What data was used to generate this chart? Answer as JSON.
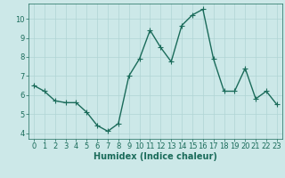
{
  "x": [
    0,
    1,
    2,
    3,
    4,
    5,
    6,
    7,
    8,
    9,
    10,
    11,
    12,
    13,
    14,
    15,
    16,
    17,
    18,
    19,
    20,
    21,
    22,
    23
  ],
  "y": [
    6.5,
    6.2,
    5.7,
    5.6,
    5.6,
    5.1,
    4.4,
    4.1,
    4.5,
    7.0,
    7.9,
    9.4,
    8.5,
    7.75,
    9.65,
    10.2,
    10.5,
    7.9,
    6.2,
    6.2,
    7.4,
    5.8,
    6.2,
    5.5
  ],
  "line_color": "#1a6b5a",
  "marker": "+",
  "marker_size": 4,
  "bg_color": "#cce8e8",
  "grid_color": "#b0d4d4",
  "xlabel": "Humidex (Indice chaleur)",
  "xlim": [
    -0.5,
    23.5
  ],
  "ylim": [
    3.7,
    10.8
  ],
  "yticks": [
    4,
    5,
    6,
    7,
    8,
    9,
    10
  ],
  "xticks": [
    0,
    1,
    2,
    3,
    4,
    5,
    6,
    7,
    8,
    9,
    10,
    11,
    12,
    13,
    14,
    15,
    16,
    17,
    18,
    19,
    20,
    21,
    22,
    23
  ],
  "tick_color": "#1a6b5a",
  "label_color": "#1a6b5a",
  "xlabel_fontsize": 7,
  "tick_fontsize": 6,
  "linewidth": 1.0,
  "markeredgewidth": 0.8
}
